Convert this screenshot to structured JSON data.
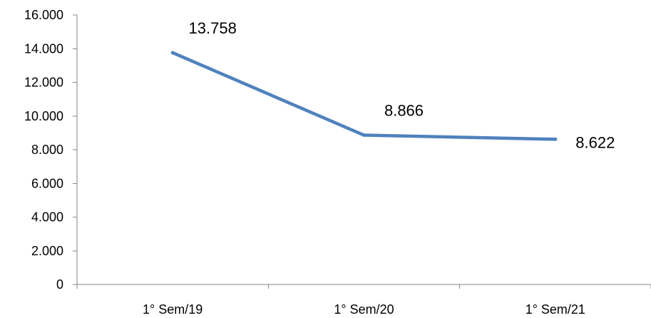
{
  "chart_data": {
    "type": "line",
    "categories": [
      "1° Sem/19",
      "1° Sem/20",
      "1° Sem/21"
    ],
    "series": [
      {
        "values": [
          13758,
          8866,
          8622
        ],
        "data_labels": [
          "13.758",
          "8.866",
          "8.622"
        ],
        "color": "#4F81BD"
      }
    ],
    "ylim": [
      0,
      16000
    ],
    "yticks": [
      0,
      2000,
      4000,
      6000,
      8000,
      10000,
      12000,
      14000,
      16000
    ],
    "ytick_labels": [
      "0",
      "2.000",
      "4.000",
      "6.000",
      "8.000",
      "10.000",
      "12.000",
      "14.000",
      "16.000"
    ],
    "grid": false,
    "legend": "none",
    "title": "",
    "xlabel": "",
    "ylabel": ""
  }
}
